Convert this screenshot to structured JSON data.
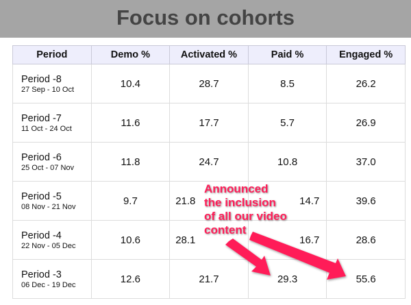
{
  "title": "Focus on cohorts",
  "table": {
    "headers": [
      "Period",
      "Demo %",
      "Activated %",
      "Paid %",
      "Engaged %"
    ],
    "rows": [
      {
        "period": "Period -8",
        "dates": "27 Sep - 10 Oct",
        "demo": "10.4",
        "activated": "28.7",
        "paid": "8.5",
        "engaged": "26.2"
      },
      {
        "period": "Period -7",
        "dates": "11 Oct - 24 Oct",
        "demo": "11.6",
        "activated": "17.7",
        "paid": "5.7",
        "engaged": "26.9"
      },
      {
        "period": "Period -6",
        "dates": "25 Oct - 07 Nov",
        "demo": "11.8",
        "activated": "24.7",
        "paid": "10.8",
        "engaged": "37.0"
      },
      {
        "period": "Period -5",
        "dates": "08 Nov - 21 Nov",
        "demo": "9.7",
        "activated": "21.8",
        "paid": "14.7",
        "engaged": "39.6"
      },
      {
        "period": "Period -4",
        "dates": "22 Nov - 05 Dec",
        "demo": "10.6",
        "activated": "28.1",
        "paid": "16.7",
        "engaged": "28.6"
      },
      {
        "period": "Period -3",
        "dates": "06 Dec - 19 Dec",
        "demo": "12.6",
        "activated": "21.7",
        "paid": "29.3",
        "engaged": "55.6"
      }
    ]
  },
  "annotation": {
    "lines": [
      "Announced",
      "the inclusion",
      "of all our video",
      "content"
    ],
    "color": "#ff1d58"
  }
}
